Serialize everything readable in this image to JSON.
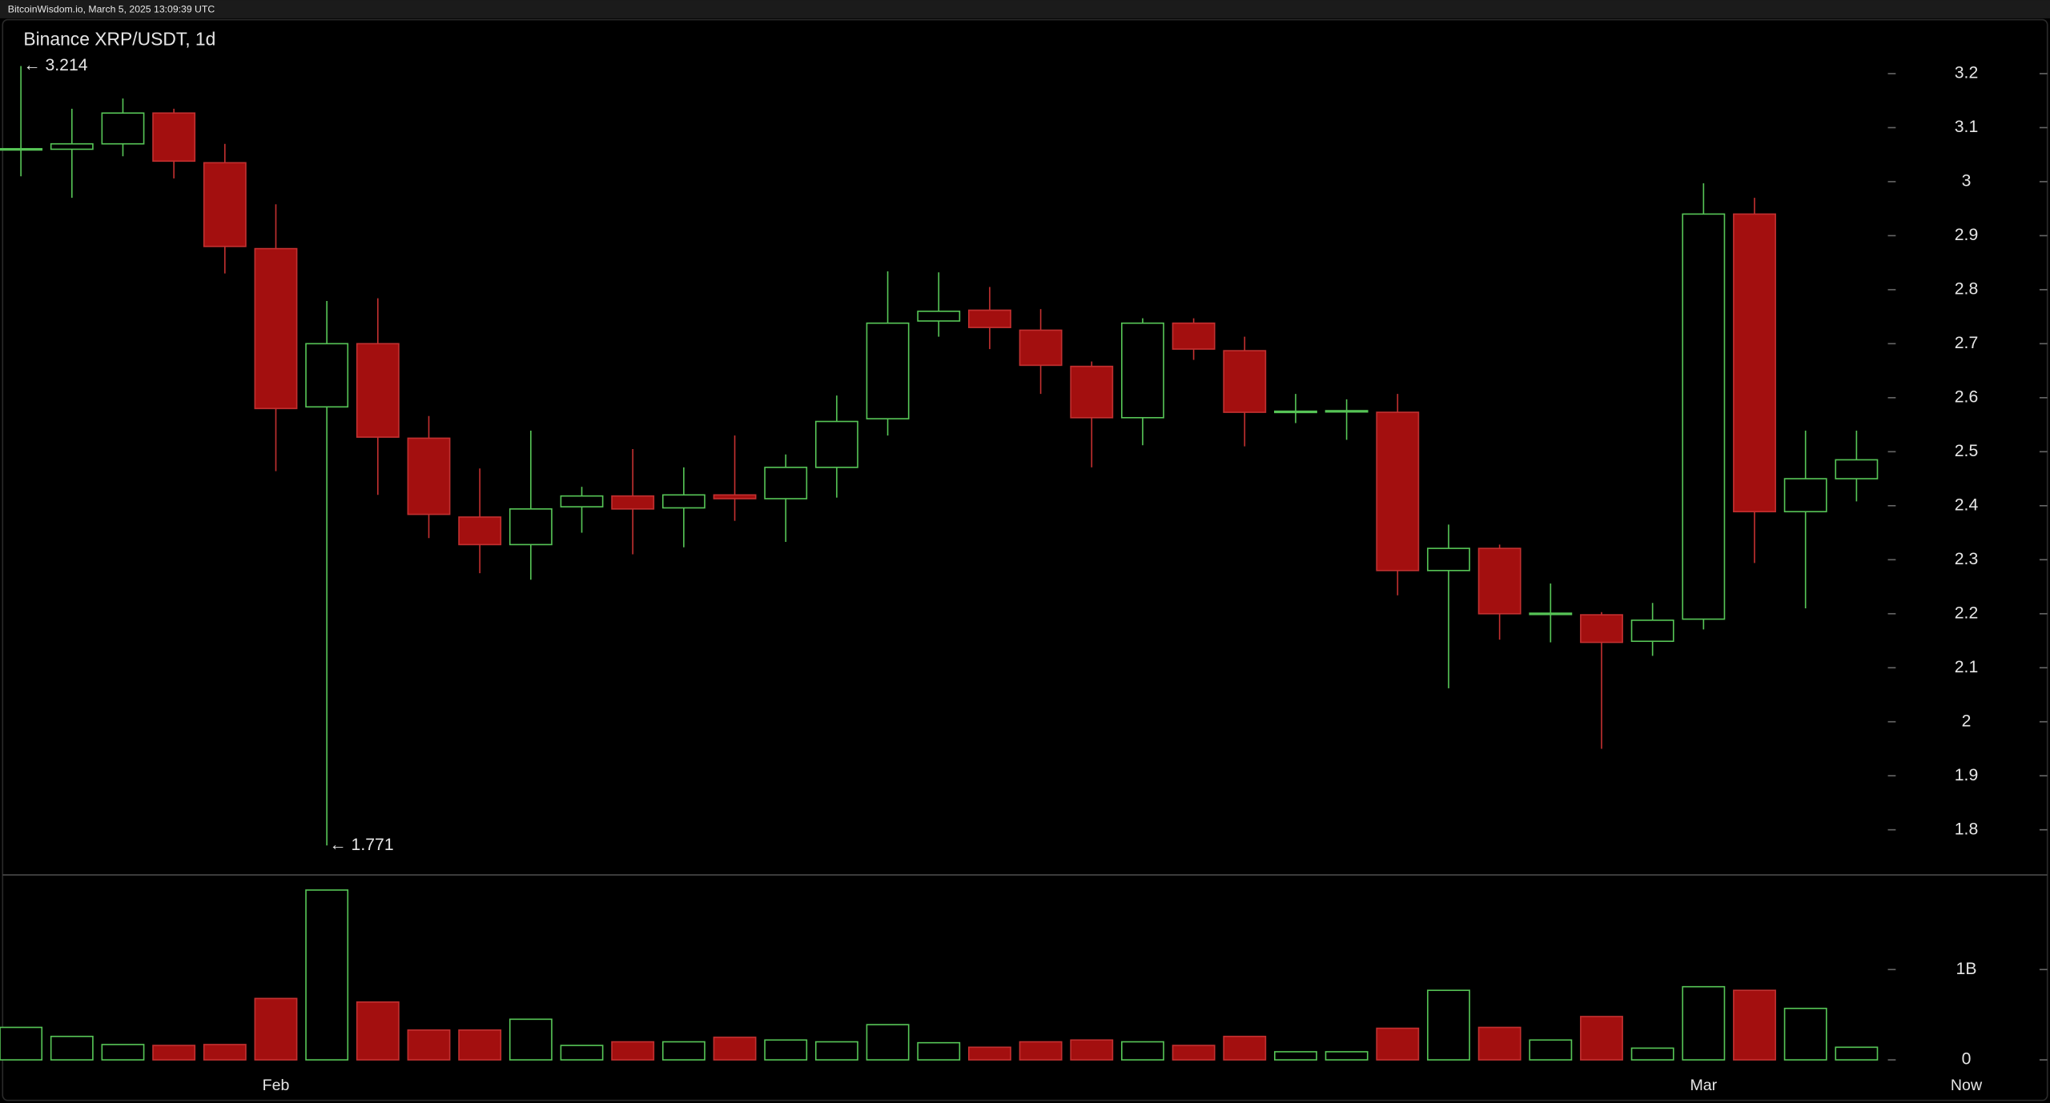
{
  "header": {
    "text": "BitcoinWisdom.io, March 5, 2025 13:09:39 UTC"
  },
  "chart_data": {
    "type": "candlestick",
    "title": "Binance XRP/USDT, 1d",
    "categories": [
      null,
      null,
      null,
      null,
      null,
      "Feb",
      null,
      null,
      null,
      null,
      null,
      null,
      null,
      null,
      null,
      null,
      null,
      null,
      null,
      null,
      null,
      null,
      null,
      null,
      null,
      null,
      null,
      null,
      null,
      null,
      null,
      null,
      null,
      "Mar",
      null,
      null,
      null
    ],
    "now_label": "Now",
    "open": [
      3.06,
      3.06,
      3.07,
      3.127,
      3.035,
      2.876,
      2.583,
      2.7,
      2.525,
      2.379,
      2.328,
      2.398,
      2.418,
      2.396,
      2.42,
      2.413,
      2.471,
      2.561,
      2.742,
      2.762,
      2.725,
      2.658,
      2.563,
      2.738,
      2.687,
      2.573,
      2.575,
      2.573,
      2.28,
      2.321,
      2.2,
      2.198,
      2.149,
      2.19,
      2.94,
      2.389,
      2.45
    ],
    "high": [
      3.214,
      3.135,
      3.154,
      3.135,
      3.07,
      2.958,
      2.779,
      2.784,
      2.566,
      2.469,
      2.539,
      2.435,
      2.505,
      2.471,
      2.53,
      2.495,
      2.604,
      2.834,
      2.832,
      2.805,
      2.764,
      2.667,
      2.747,
      2.747,
      2.713,
      2.607,
      2.597,
      2.607,
      2.365,
      2.328,
      2.256,
      2.203,
      2.22,
      2.997,
      2.97,
      2.539,
      2.539
    ],
    "low": [
      3.01,
      2.97,
      3.047,
      3.006,
      2.83,
      2.464,
      1.771,
      2.42,
      2.34,
      2.275,
      2.263,
      2.35,
      2.31,
      2.323,
      2.372,
      2.333,
      2.415,
      2.53,
      2.713,
      2.69,
      2.607,
      2.471,
      2.512,
      2.67,
      2.51,
      2.553,
      2.522,
      2.234,
      2.062,
      2.152,
      2.147,
      1.95,
      2.122,
      2.171,
      2.294,
      2.21,
      2.408
    ],
    "close": [
      3.061,
      3.07,
      3.127,
      3.038,
      2.88,
      2.58,
      2.7,
      2.527,
      2.384,
      2.328,
      2.394,
      2.418,
      2.394,
      2.42,
      2.413,
      2.471,
      2.556,
      2.738,
      2.76,
      2.73,
      2.66,
      2.563,
      2.738,
      2.69,
      2.573,
      2.575,
      2.576,
      2.28,
      2.321,
      2.2,
      2.201,
      2.147,
      2.188,
      2.94,
      2.389,
      2.45,
      2.485
    ],
    "volume": [
      360000000,
      260000000,
      170000000,
      160000000,
      170000000,
      680000000,
      1880000000,
      640000000,
      330000000,
      330000000,
      450000000,
      160000000,
      200000000,
      200000000,
      250000000,
      220000000,
      200000000,
      390000000,
      190000000,
      140000000,
      200000000,
      220000000,
      200000000,
      160000000,
      260000000,
      90000000,
      90000000,
      350000000,
      770000000,
      360000000,
      220000000,
      480000000,
      130000000,
      810000000,
      770000000,
      570000000,
      140000000
    ],
    "annotations": [
      "← 3.214",
      "← 1.771"
    ],
    "ylim": [
      1.72,
      3.3
    ],
    "yticks": [
      1.8,
      1.9,
      2,
      2.1,
      2.2,
      2.3,
      2.4,
      2.5,
      2.6,
      2.7,
      2.8,
      2.9,
      3,
      3.1,
      3.2
    ],
    "y2lim": [
      -130000000,
      2040000000
    ],
    "y2ticks": [
      0,
      {
        "value": 1000000000,
        "label": "1B"
      }
    ],
    "up_color": "#56c456",
    "down_color": "#a30f0f",
    "grid": false
  }
}
